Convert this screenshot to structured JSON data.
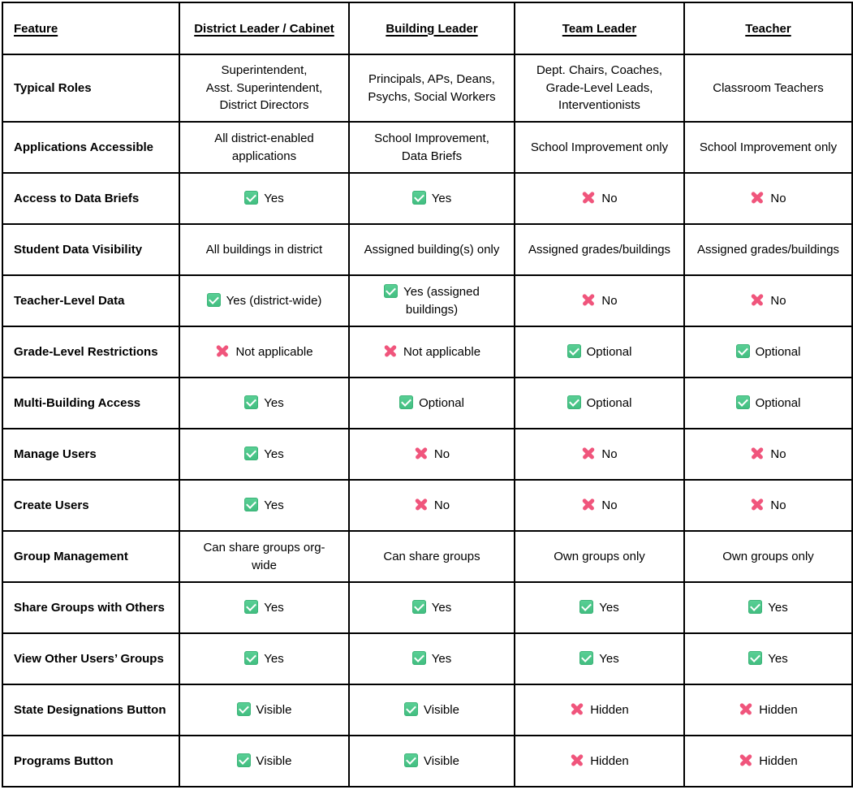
{
  "colors": {
    "check_green_top": "#5bd096",
    "check_green_bottom": "#41bd80",
    "check_green_border": "#3cb478",
    "cross_pink": "#f0557c",
    "border_black": "#000000",
    "background": "#ffffff"
  },
  "table": {
    "columns": [
      "Feature",
      "District Leader / Cabinet",
      "Building Leader",
      "Team Leader",
      "Teacher"
    ],
    "rows": [
      {
        "feature": "Typical Roles",
        "tall": true,
        "cells": [
          {
            "icon": null,
            "text": "Superintendent,\nAsst. Superintendent,\nDistrict Directors"
          },
          {
            "icon": null,
            "text": "Principals, APs, Deans,\nPsychs, Social Workers"
          },
          {
            "icon": null,
            "text": "Dept. Chairs, Coaches,\nGrade-Level Leads,\nInterventionists"
          },
          {
            "icon": null,
            "text": "Classroom Teachers"
          }
        ]
      },
      {
        "feature": "Applications Accessible",
        "tall": false,
        "cells": [
          {
            "icon": null,
            "text": "All district-enabled\napplications"
          },
          {
            "icon": null,
            "text": "School Improvement,\nData Briefs"
          },
          {
            "icon": null,
            "text": "School Improvement only"
          },
          {
            "icon": null,
            "text": "School Improvement only"
          }
        ]
      },
      {
        "feature": "Access to Data Briefs",
        "tall": false,
        "cells": [
          {
            "icon": "check",
            "text": "Yes"
          },
          {
            "icon": "check",
            "text": "Yes"
          },
          {
            "icon": "cross",
            "text": "No"
          },
          {
            "icon": "cross",
            "text": "No"
          }
        ]
      },
      {
        "feature": "Student Data Visibility",
        "tall": false,
        "cells": [
          {
            "icon": null,
            "text": "All buildings in district"
          },
          {
            "icon": null,
            "text": "Assigned building(s) only"
          },
          {
            "icon": null,
            "text": "Assigned grades/buildings"
          },
          {
            "icon": null,
            "text": "Assigned grades/buildings"
          }
        ]
      },
      {
        "feature": "Teacher-Level Data",
        "tall": false,
        "cells": [
          {
            "icon": "check",
            "text": "Yes (district-wide)"
          },
          {
            "icon": "check",
            "text": "Yes (assigned\nbuildings)"
          },
          {
            "icon": "cross",
            "text": "No"
          },
          {
            "icon": "cross",
            "text": "No"
          }
        ]
      },
      {
        "feature": "Grade-Level Restrictions",
        "tall": false,
        "cells": [
          {
            "icon": "cross",
            "text": "Not applicable"
          },
          {
            "icon": "cross",
            "text": "Not applicable"
          },
          {
            "icon": "check",
            "text": "Optional"
          },
          {
            "icon": "check",
            "text": "Optional"
          }
        ]
      },
      {
        "feature": "Multi-Building Access",
        "tall": false,
        "cells": [
          {
            "icon": "check",
            "text": "Yes"
          },
          {
            "icon": "check",
            "text": "Optional"
          },
          {
            "icon": "check",
            "text": "Optional"
          },
          {
            "icon": "check",
            "text": "Optional"
          }
        ]
      },
      {
        "feature": "Manage Users",
        "tall": false,
        "cells": [
          {
            "icon": "check",
            "text": "Yes"
          },
          {
            "icon": "cross",
            "text": "No"
          },
          {
            "icon": "cross",
            "text": "No"
          },
          {
            "icon": "cross",
            "text": "No"
          }
        ]
      },
      {
        "feature": "Create Users",
        "tall": false,
        "cells": [
          {
            "icon": "check",
            "text": "Yes"
          },
          {
            "icon": "cross",
            "text": "No"
          },
          {
            "icon": "cross",
            "text": "No"
          },
          {
            "icon": "cross",
            "text": "No"
          }
        ]
      },
      {
        "feature": "Group Management",
        "tall": false,
        "cells": [
          {
            "icon": null,
            "text": "Can share groups org-\nwide"
          },
          {
            "icon": null,
            "text": "Can share groups"
          },
          {
            "icon": null,
            "text": "Own groups only"
          },
          {
            "icon": null,
            "text": "Own groups only"
          }
        ]
      },
      {
        "feature": "Share Groups with Others",
        "tall": false,
        "cells": [
          {
            "icon": "check",
            "text": "Yes"
          },
          {
            "icon": "check",
            "text": "Yes"
          },
          {
            "icon": "check",
            "text": "Yes"
          },
          {
            "icon": "check",
            "text": "Yes"
          }
        ]
      },
      {
        "feature": "View Other Users’ Groups",
        "tall": false,
        "cells": [
          {
            "icon": "check",
            "text": "Yes"
          },
          {
            "icon": "check",
            "text": "Yes"
          },
          {
            "icon": "check",
            "text": "Yes"
          },
          {
            "icon": "check",
            "text": "Yes"
          }
        ]
      },
      {
        "feature": "State Designations Button",
        "tall": false,
        "cells": [
          {
            "icon": "check",
            "text": "Visible"
          },
          {
            "icon": "check",
            "text": "Visible"
          },
          {
            "icon": "cross",
            "text": "Hidden"
          },
          {
            "icon": "cross",
            "text": "Hidden"
          }
        ]
      },
      {
        "feature": "Programs Button",
        "tall": false,
        "cells": [
          {
            "icon": "check",
            "text": "Visible"
          },
          {
            "icon": "check",
            "text": "Visible"
          },
          {
            "icon": "cross",
            "text": "Hidden"
          },
          {
            "icon": "cross",
            "text": "Hidden"
          }
        ]
      }
    ]
  }
}
